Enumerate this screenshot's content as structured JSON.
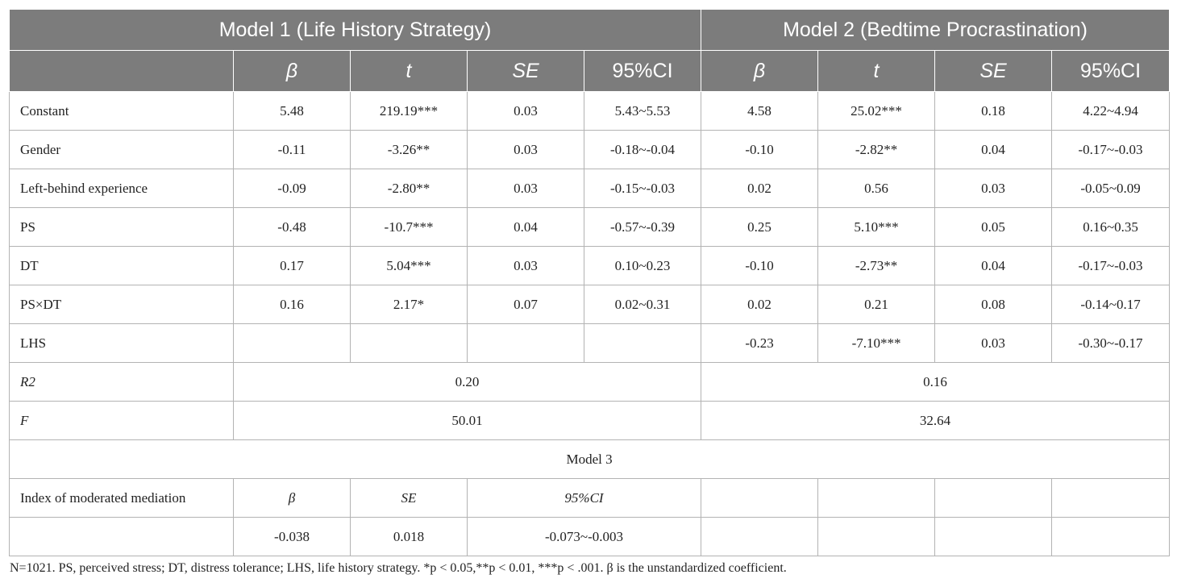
{
  "header": {
    "model1_title": "Model 1 (Life History Strategy)",
    "model2_title": "Model 2 (Bedtime Procrastination)",
    "cols": [
      "β",
      "t",
      "SE",
      "95%CI"
    ]
  },
  "rows": [
    {
      "label": "Constant",
      "m1": [
        "5.48",
        "219.19***",
        "0.03",
        "5.43~5.53"
      ],
      "m2": [
        "4.58",
        "25.02***",
        "0.18",
        "4.22~4.94"
      ]
    },
    {
      "label": "Gender",
      "m1": [
        "-0.11",
        "-3.26**",
        "0.03",
        "-0.18~-0.04"
      ],
      "m2": [
        "-0.10",
        "-2.82**",
        "0.04",
        "-0.17~-0.03"
      ]
    },
    {
      "label": "Left-behind experience",
      "m1": [
        "-0.09",
        "-2.80**",
        "0.03",
        "-0.15~-0.03"
      ],
      "m2": [
        "0.02",
        "0.56",
        "0.03",
        "-0.05~0.09"
      ]
    },
    {
      "label": "PS",
      "m1": [
        "-0.48",
        "-10.7***",
        "0.04",
        "-0.57~-0.39"
      ],
      "m2": [
        "0.25",
        "5.10***",
        "0.05",
        "0.16~0.35"
      ]
    },
    {
      "label": "DT",
      "m1": [
        "0.17",
        "5.04***",
        "0.03",
        "0.10~0.23"
      ],
      "m2": [
        "-0.10",
        "-2.73**",
        "0.04",
        "-0.17~-0.03"
      ]
    },
    {
      "label": "PS×DT",
      "m1": [
        "0.16",
        "2.17*",
        "0.07",
        "0.02~0.31"
      ],
      "m2": [
        "0.02",
        "0.21",
        "0.08",
        "-0.14~0.17"
      ]
    },
    {
      "label": "LHS",
      "m1": [
        "",
        "",
        "",
        ""
      ],
      "m2": [
        "-0.23",
        "-7.10***",
        "0.03",
        "-0.30~-0.17"
      ]
    }
  ],
  "fit": {
    "r2_label": "R2",
    "r2_m1": "0.20",
    "r2_m2": "0.16",
    "f_label": "F",
    "f_m1": "50.01",
    "f_m2": "32.64"
  },
  "model3": {
    "title": "Model 3",
    "index_label": "Index of moderated mediation",
    "col_beta": "β",
    "col_se": "SE",
    "col_ci": "95%CI",
    "beta": "-0.038",
    "se": "0.018",
    "ci": "-0.073~-0.003"
  },
  "note": "N=1021. PS, perceived stress; DT, distress tolerance; LHS, life history strategy. *p < 0.05,**p < 0.01, ***p < .001. β is the unstandardized coefficient."
}
